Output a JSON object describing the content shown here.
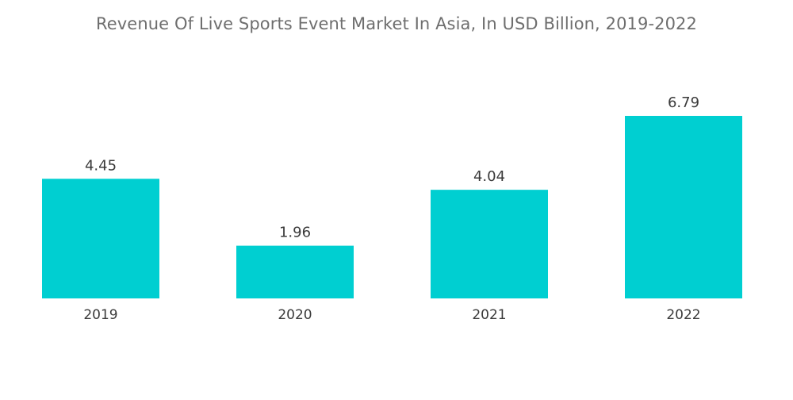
{
  "chart_data": {
    "type": "bar",
    "title": "Revenue Of Live Sports Event Market In Asia, In USD Billion, 2019-2022",
    "categories": [
      "2019",
      "2020",
      "2021",
      "2022"
    ],
    "values": [
      4.45,
      1.96,
      4.04,
      6.79
    ],
    "value_labels": [
      "4.45",
      "1.96",
      "4.04",
      "6.79"
    ],
    "xlabel": "",
    "ylabel": "",
    "ylim": [
      0,
      6.79
    ],
    "grid": false,
    "legend": "none",
    "bar_color": "#00cfd1"
  }
}
